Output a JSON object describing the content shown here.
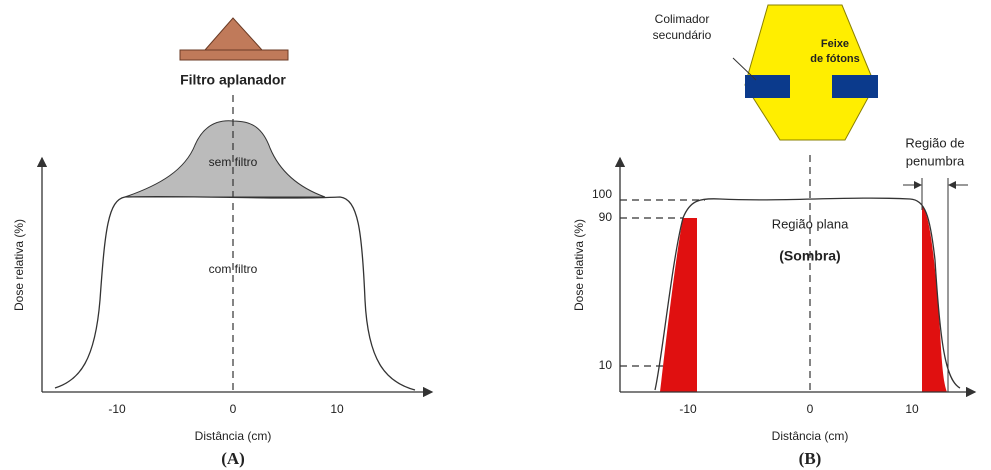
{
  "panel_a": {
    "filter_label": "Filtro aplanador",
    "no_filter_label": "sem filtro",
    "with_filter_label": "com filtro",
    "y_axis_label": "Dose relativa (%)",
    "x_axis_label": "Distância (cm)",
    "x_tick_labels": [
      "-10",
      "0",
      "10"
    ],
    "caption": "(A)"
  },
  "panel_b": {
    "collimator_label": [
      "Colimador",
      "secundário"
    ],
    "beam_label": [
      "Feixe",
      "de fótons"
    ],
    "penumbra_label": [
      "Região de",
      "penumbra"
    ],
    "flat_label": "Região plana",
    "shadow_label": "(Sombra)",
    "y_axis_label": "Dose relativa (%)",
    "x_axis_label": "Distância (cm)",
    "x_tick_labels": [
      "-10",
      "0",
      "10"
    ],
    "y_tick_labels": [
      "100",
      "90",
      "10"
    ],
    "caption": "(B)"
  }
}
